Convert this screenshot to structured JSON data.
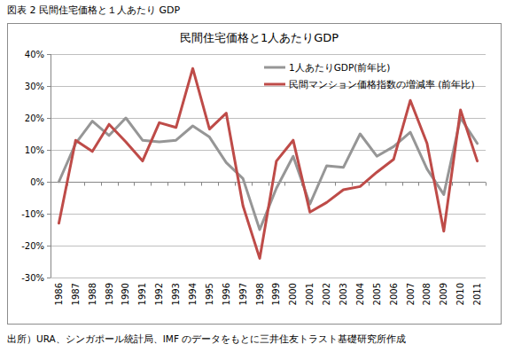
{
  "chart_data": {
    "type": "line",
    "title": "民間住宅価格と1人あたりGDP",
    "annotations": [
      "図表 2  民間住宅価格と１人あたり GDP",
      "出所）URA、シンガポール統計局、IMF のデータをもとに三井住友トラスト基礎研究所作成"
    ],
    "categories": [
      "1986",
      "1987",
      "1988",
      "1989",
      "1990",
      "1991",
      "1992",
      "1993",
      "1994",
      "1995",
      "1996",
      "1997",
      "1998",
      "1999",
      "2000",
      "2001",
      "2002",
      "2003",
      "2004",
      "2005",
      "2006",
      "2007",
      "2008",
      "2009",
      "2010",
      "2011"
    ],
    "series": [
      {
        "name": "1人あたりGDP(前年比)",
        "color": "#969696",
        "values": [
          0,
          12,
          19,
          14.5,
          20,
          13,
          12.5,
          13,
          17.5,
          14,
          6,
          1,
          -15,
          -2,
          8,
          -7,
          5,
          4.5,
          15,
          8,
          11,
          15.5,
          4,
          -4,
          20,
          12
        ]
      },
      {
        "name": "民間マンション価格指数の増減率 (前年比)",
        "color": "#be4b48",
        "values": [
          -13,
          13,
          9.5,
          18,
          12.5,
          6.5,
          18.5,
          17,
          35.5,
          16.5,
          21.5,
          -7.5,
          -24,
          6.5,
          13,
          -9.5,
          -6.5,
          -2.5,
          -1.5,
          3,
          7,
          25.5,
          12,
          -15.5,
          22.5,
          6.5
        ]
      }
    ],
    "ylim": [
      -30,
      40
    ],
    "yticks": [
      {
        "value": -30,
        "label": "-30%"
      },
      {
        "value": -20,
        "label": "-20%"
      },
      {
        "value": -10,
        "label": "-10%"
      },
      {
        "value": 0,
        "label": "0%"
      },
      {
        "value": 10,
        "label": "10%"
      },
      {
        "value": 20,
        "label": "20%"
      },
      {
        "value": 30,
        "label": "30%"
      },
      {
        "value": 40,
        "label": "40%"
      }
    ],
    "grid": true,
    "legend": "top-right"
  }
}
